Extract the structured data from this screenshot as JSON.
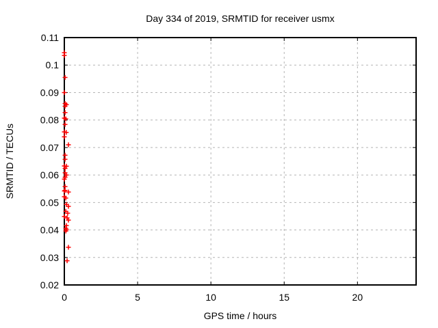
{
  "title": "Day 334 of 2019, SRMTID for receiver usmx",
  "colors": {
    "marker": "#ff0000",
    "axis": "#000000",
    "grid": "#b4b4b4",
    "background": "#ffffff",
    "text": "#000000"
  },
  "chart_data": {
    "type": "scatter",
    "title": "Day 334 of 2019, SRMTID for receiver usmx",
    "xlabel": "GPS time / hours",
    "ylabel": "SRMTID / TECUs",
    "xlim": [
      0,
      24
    ],
    "ylim": [
      0.02,
      0.11
    ],
    "xticks": [
      0,
      5,
      10,
      15,
      20
    ],
    "xtick_labels": [
      "0",
      "5",
      "10",
      "15",
      "20"
    ],
    "yticks": [
      0.02,
      0.03,
      0.04,
      0.05,
      0.06,
      0.07,
      0.08,
      0.09,
      0.1,
      0.11
    ],
    "ytick_labels": [
      "0.02",
      "0.03",
      "0.04",
      "0.05",
      "0.06",
      "0.07",
      "0.08",
      "0.09",
      "0.1",
      "0.11"
    ],
    "grid": true,
    "legend": "none",
    "marker": "plus",
    "series": [
      {
        "name": "SRMTID",
        "color": "#ff0000",
        "points": [
          [
            0.0,
            0.1045
          ],
          [
            0.0,
            0.1035
          ],
          [
            0.05,
            0.0955
          ],
          [
            0.0,
            0.09
          ],
          [
            0.05,
            0.086
          ],
          [
            0.14,
            0.0856
          ],
          [
            0.05,
            0.085
          ],
          [
            0.05,
            0.0827
          ],
          [
            0.0,
            0.0807
          ],
          [
            0.1,
            0.0804
          ],
          [
            0.05,
            0.0784
          ],
          [
            0.0,
            0.0757
          ],
          [
            0.13,
            0.0755
          ],
          [
            0.0,
            0.0739
          ],
          [
            0.28,
            0.071
          ],
          [
            0.05,
            0.0672
          ],
          [
            0.05,
            0.0657
          ],
          [
            0.0,
            0.0633
          ],
          [
            0.14,
            0.0632
          ],
          [
            0.05,
            0.0624
          ],
          [
            0.05,
            0.0608
          ],
          [
            0.14,
            0.06
          ],
          [
            0.05,
            0.0592
          ],
          [
            0.0,
            0.0585
          ],
          [
            0.05,
            0.0558
          ],
          [
            0.05,
            0.0544
          ],
          [
            0.0,
            0.0542
          ],
          [
            0.28,
            0.0538
          ],
          [
            0.0,
            0.0521
          ],
          [
            0.1,
            0.0516
          ],
          [
            0.14,
            0.0493
          ],
          [
            0.28,
            0.0486
          ],
          [
            0.1,
            0.0468
          ],
          [
            0.23,
            0.0461
          ],
          [
            0.0,
            0.0449
          ],
          [
            0.19,
            0.0444
          ],
          [
            0.28,
            0.0436
          ],
          [
            0.14,
            0.0416
          ],
          [
            0.1,
            0.0406
          ],
          [
            0.14,
            0.0401
          ],
          [
            0.1,
            0.0396
          ],
          [
            0.28,
            0.0337
          ],
          [
            0.19,
            0.0288
          ]
        ]
      }
    ]
  }
}
